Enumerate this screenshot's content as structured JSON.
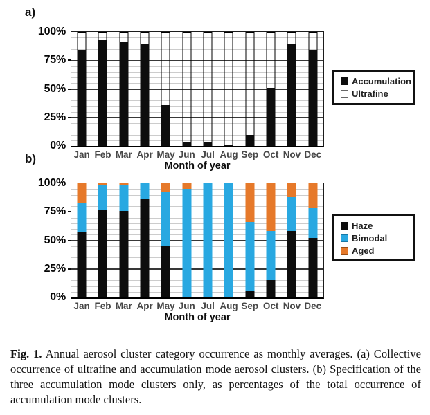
{
  "figure": {
    "panels": {
      "a": "a)",
      "b": "b)"
    },
    "caption": {
      "lead": "Fig. 1.",
      "text": "Annual aerosol cluster category occurrence as monthly averages. (a) Collective occurrence of ultrafine and accumulation mode aerosol clusters. (b) Specification of the three accumulation mode clusters only, as percentages of the total occurrence of accumulation mode clusters."
    }
  },
  "colors": {
    "bar_black": "#0d0d0d",
    "bimodal_cyan": "#29a8e1",
    "aged_orange": "#e6792a",
    "grid_minor": "#cccccc",
    "grid_major": "#383838"
  },
  "chart_data": [
    {
      "id": "a",
      "type": "bar",
      "stacked": true,
      "variant": "outline-total",
      "categories": [
        "Jan",
        "Feb",
        "Mar",
        "Apr",
        "May",
        "Jun",
        "Jul",
        "Aug",
        "Sep",
        "Oct",
        "Nov",
        "Dec"
      ],
      "series": [
        {
          "name": "Accumulation",
          "color": "#0d0d0d",
          "values": [
            84,
            93,
            91,
            89,
            36,
            3,
            3,
            1,
            10,
            51,
            90,
            84
          ]
        },
        {
          "name": "Ultrafine",
          "color": "#ffffff",
          "values": [
            16,
            7,
            9,
            11,
            64,
            97,
            97,
            99,
            90,
            49,
            10,
            16
          ]
        }
      ],
      "xlabel": "Month of year",
      "ylabel": "",
      "ylim": [
        0,
        100
      ],
      "y_ticks": [
        "0%",
        "25%",
        "50%",
        "75%",
        "100%"
      ],
      "grid": {
        "minor_step": 5,
        "major_step": 25
      },
      "legend": {
        "position": "right",
        "entries": [
          {
            "label": "Accumulation",
            "swatch": "#0d0d0d",
            "swatch_border": "#0d0d0d"
          },
          {
            "label": "Ultrafine",
            "swatch": "#ffffff",
            "swatch_border": "#666666"
          }
        ]
      }
    },
    {
      "id": "b",
      "type": "bar",
      "stacked": true,
      "variant": "stack",
      "categories": [
        "Jan",
        "Feb",
        "Mar",
        "Apr",
        "May",
        "Jun",
        "Jul",
        "Aug",
        "Sep",
        "Oct",
        "Nov",
        "Dec"
      ],
      "series": [
        {
          "name": "Haze",
          "color": "#0d0d0d",
          "values": [
            57,
            77,
            76,
            86,
            45,
            0,
            0,
            0,
            6,
            15,
            58,
            52
          ]
        },
        {
          "name": "Bimodal",
          "color": "#29a8e1",
          "values": [
            26,
            22,
            22,
            14,
            47,
            95,
            100,
            100,
            60,
            43,
            30,
            27
          ]
        },
        {
          "name": "Aged",
          "color": "#e6792a",
          "values": [
            17,
            1,
            2,
            0,
            8,
            5,
            0,
            0,
            34,
            42,
            12,
            21
          ]
        }
      ],
      "xlabel": "Month of year",
      "ylabel": "",
      "ylim": [
        0,
        100
      ],
      "y_ticks": [
        "0%",
        "25%",
        "50%",
        "75%",
        "100%"
      ],
      "grid": {
        "minor_step": 5,
        "major_step": 25
      },
      "legend": {
        "position": "right",
        "entries": [
          {
            "label": "Haze",
            "swatch": "#0d0d0d",
            "swatch_border": "#0d0d0d"
          },
          {
            "label": "Bimodal",
            "swatch": "#29a8e1",
            "swatch_border": "#1878a6"
          },
          {
            "label": "Aged",
            "swatch": "#e6792a",
            "swatch_border": "#9c4f17"
          }
        ]
      }
    }
  ]
}
